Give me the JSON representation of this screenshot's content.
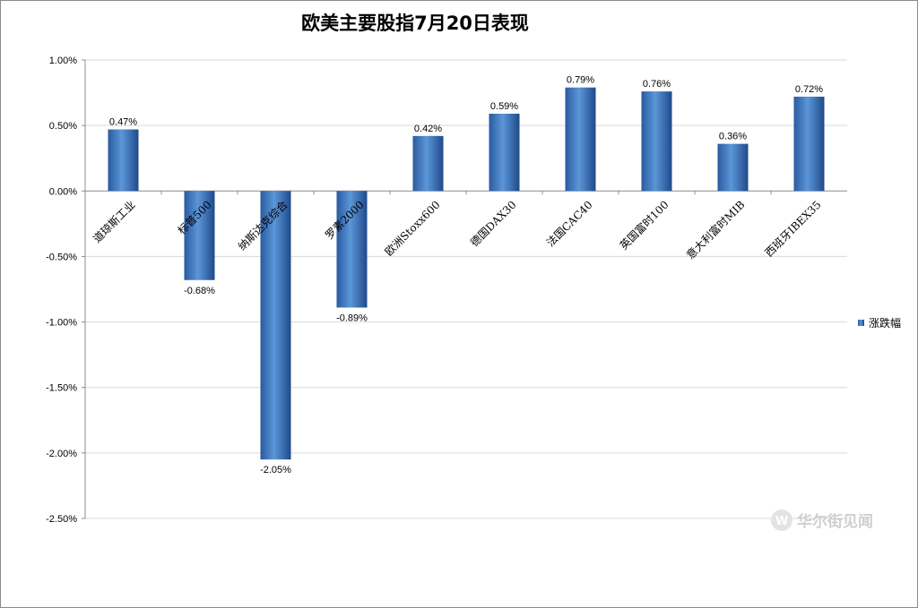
{
  "chart_data": {
    "type": "bar",
    "title": "欧美主要股指7月20日表现",
    "categories": [
      "道琼斯工业",
      "标普500",
      "纳斯达克综合",
      "罗素2000",
      "欧洲Stoxx600",
      "德国DAX30",
      "法国CAC40",
      "英国富时100",
      "意大利富时MIB",
      "西班牙IBEX35"
    ],
    "series": [
      {
        "name": "涨跌幅",
        "values": [
          0.47,
          -0.68,
          -2.05,
          -0.89,
          0.42,
          0.59,
          0.79,
          0.76,
          0.36,
          0.72
        ]
      }
    ],
    "data_labels": [
      "0.47%",
      "-0.68%",
      "-2.05%",
      "-0.89%",
      "0.42%",
      "0.59%",
      "0.79%",
      "0.76%",
      "0.36%",
      "0.72%"
    ],
    "ylim": [
      -2.5,
      1.0
    ],
    "yticks": [
      1.0,
      0.5,
      0.0,
      -0.5,
      -1.0,
      -1.5,
      -2.0,
      -2.5
    ],
    "ytick_labels": [
      "1.00%",
      "0.50%",
      "0.00%",
      "-0.50%",
      "-1.00%",
      "-1.50%",
      "-2.00%",
      "-2.50%"
    ],
    "grid": true,
    "legend_position": "right",
    "bar_color": "#4a86c8"
  },
  "watermark": {
    "text": "华尔街见闻",
    "icon": "brand-logo-icon"
  }
}
